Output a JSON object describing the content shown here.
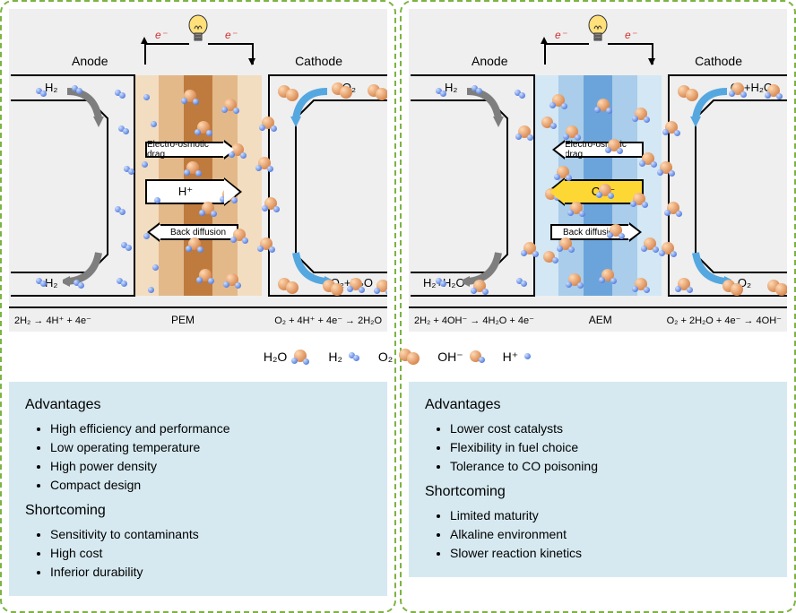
{
  "colors": {
    "dash_border": "#7cb342",
    "bg_gray": "#efefef",
    "infobox_bg": "#d6e9f0",
    "pem_dark": "#bf7b3d",
    "pem_mid": "#e3b98a",
    "pem_light": "#f3ddc0",
    "aem_dark": "#6ba4db",
    "aem_mid": "#a9cdea",
    "aem_light": "#d3e7f5",
    "h2o_orange": "#c96a2c",
    "h_blue": "#2b5bd1",
    "o2_orange": "#c96a2c",
    "arrow_yellow": "#fdd835",
    "electron_red": "#d32f2f",
    "flow_gray": "#7e7e7e",
    "flow_blue": "#55a7e0"
  },
  "legend": {
    "h2o": "H₂O",
    "h2": "H₂",
    "o2": "O₂",
    "oh": "OH⁻",
    "hplus": "H⁺"
  },
  "common": {
    "electron": "e⁻",
    "anode": "Anode",
    "cathode": "Cathode",
    "eo_drag": "Electro-osmotic drag",
    "back_diff": "Back diffusion"
  },
  "pem": {
    "membrane_label": "PEM",
    "ion_label": "H⁺",
    "anode_in": "H₂",
    "anode_out": "H₂",
    "cathode_in": "O₂",
    "cathode_out": "O₂+H₂O",
    "anode_rxn": "2H₂ → 4H⁺ + 4e⁻",
    "cathode_rxn": "O₂ + 4H⁺ + 4e⁻ → 2H₂O",
    "advantages_title": "Advantages",
    "advantages": [
      "High efficiency and performance",
      "Low operating temperature",
      "High power density",
      "Compact design"
    ],
    "short_title": "Shortcoming",
    "shortcomings": [
      "Sensitivity to contaminants",
      "High cost",
      "Inferior durability"
    ]
  },
  "aem": {
    "membrane_label": "AEM",
    "ion_label": "OH⁻",
    "anode_in": "H₂",
    "anode_out": "H₂+H₂O",
    "cathode_in": "O₂+H₂O",
    "cathode_out": "O₂",
    "anode_rxn": "2H₂ + 4OH⁻ → 4H₂O + 4e⁻",
    "cathode_rxn": "O₂ + 2H₂O + 4e⁻ → 4OH⁻",
    "advantages_title": "Advantages",
    "advantages": [
      "Lower cost catalysts",
      "Flexibility in fuel choice",
      "Tolerance to CO poisoning"
    ],
    "short_title": "Shortcoming",
    "shortcomings": [
      "Limited maturity",
      "Alkaline environment",
      "Slower reaction kinetics"
    ]
  }
}
